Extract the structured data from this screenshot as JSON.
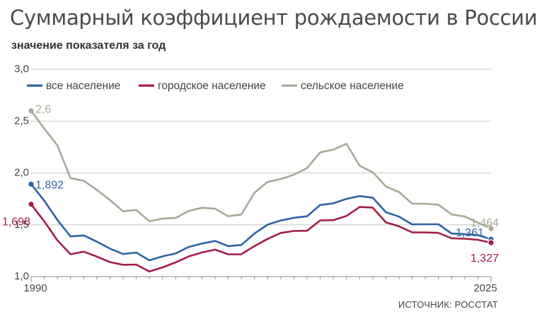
{
  "title": "Суммарный коэффициент рождаемости в России",
  "subtitle": "значение показателя за год",
  "source": "ИСТОЧНИК: РОССТАТ",
  "chart_data": {
    "type": "line",
    "ylim": [
      1.0,
      3.0
    ],
    "xlim": [
      1990,
      2025
    ],
    "y_ticks": [
      "1,0",
      "1,5",
      "2,0",
      "2,5",
      "3,0"
    ],
    "y_tick_values": [
      1.0,
      1.5,
      2.0,
      2.5,
      3.0
    ],
    "x_tick_labels": [
      {
        "year": 1990,
        "label": "1990"
      },
      {
        "year": 2025,
        "label": "2025"
      }
    ],
    "legend_placement": "top-left",
    "grid": "horizontal",
    "x": [
      1990,
      1991,
      1992,
      1993,
      1994,
      1995,
      1996,
      1997,
      1998,
      1999,
      2000,
      2001,
      2002,
      2003,
      2004,
      2005,
      2006,
      2007,
      2008,
      2009,
      2010,
      2011,
      2012,
      2013,
      2014,
      2015,
      2016,
      2017,
      2018,
      2019,
      2020,
      2021,
      2022,
      2023,
      2024,
      2025
    ],
    "series": [
      {
        "name": "все население",
        "color": "#2e63a4",
        "values": [
          1.892,
          1.732,
          1.547,
          1.388,
          1.397,
          1.337,
          1.27,
          1.218,
          1.232,
          1.157,
          1.195,
          1.223,
          1.286,
          1.319,
          1.344,
          1.294,
          1.305,
          1.416,
          1.502,
          1.542,
          1.567,
          1.582,
          1.691,
          1.707,
          1.75,
          1.777,
          1.762,
          1.621,
          1.579,
          1.504,
          1.505,
          1.505,
          1.416,
          1.41,
          1.4,
          1.361
        ],
        "start_label": "1,892",
        "end_label": "1,361"
      },
      {
        "name": "городское население",
        "color": "#a51e45",
        "values": [
          1.698,
          1.533,
          1.35,
          1.216,
          1.24,
          1.193,
          1.14,
          1.114,
          1.116,
          1.049,
          1.089,
          1.137,
          1.195,
          1.233,
          1.26,
          1.215,
          1.216,
          1.295,
          1.364,
          1.421,
          1.44,
          1.442,
          1.543,
          1.545,
          1.585,
          1.672,
          1.665,
          1.523,
          1.485,
          1.427,
          1.426,
          1.422,
          1.37,
          1.365,
          1.355,
          1.327
        ],
        "start_label": "1,698",
        "end_label": "1,327"
      },
      {
        "name": "сельское население",
        "color": "#a8a997",
        "values": [
          2.6,
          2.428,
          2.266,
          1.95,
          1.925,
          1.837,
          1.739,
          1.631,
          1.643,
          1.535,
          1.559,
          1.566,
          1.634,
          1.664,
          1.655,
          1.582,
          1.599,
          1.81,
          1.914,
          1.941,
          1.983,
          2.048,
          2.199,
          2.225,
          2.281,
          2.07,
          2.006,
          1.87,
          1.816,
          1.703,
          1.703,
          1.694,
          1.599,
          1.58,
          1.52,
          1.464
        ],
        "start_label": "2,6",
        "end_label": "1,464"
      }
    ]
  }
}
